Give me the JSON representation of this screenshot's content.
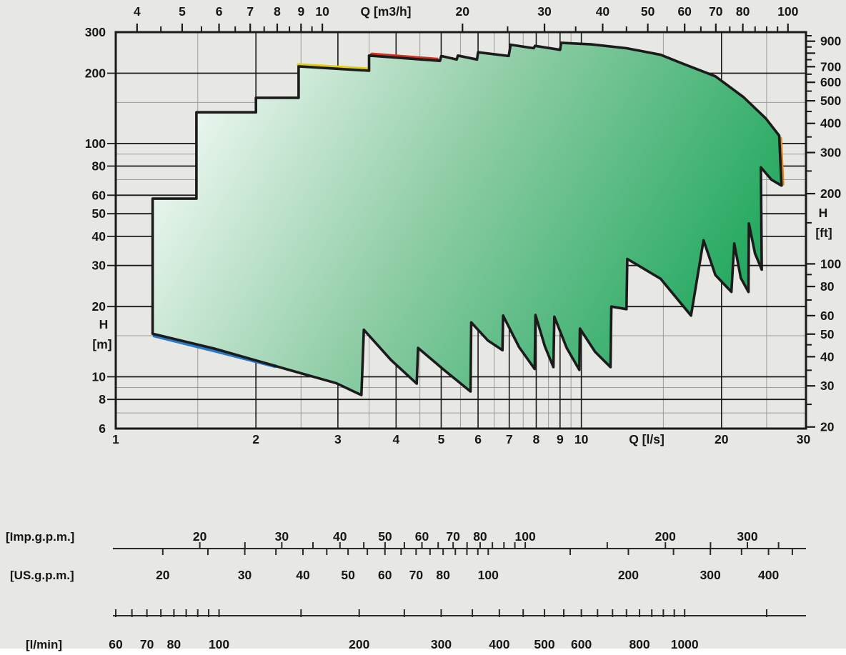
{
  "colors": {
    "background": "#e7e7e4",
    "bottom_strip": "#ffffff",
    "grid_minor": "#9b9b99",
    "grid_major": "#1a1a1a",
    "frame": "#1a1a1a",
    "text": "#161616",
    "envelope_stroke": "#1b1b1b",
    "envelope_grad_start": "#ffffff",
    "envelope_grad_mid": "#8fcda6",
    "envelope_grad_end": "#0aa04f",
    "accent_yellow": "#e3cf06",
    "accent_red": "#d23222",
    "accent_blue": "#2b78c6",
    "accent_orange": "#e0841f",
    "ruler_line": "#2a2a2a"
  },
  "chart_data": {
    "type": "area",
    "title": "",
    "scale": "log-log",
    "x_bottom": {
      "unit_label": "Q  [l/s]",
      "min": 1,
      "max": 30.37,
      "labels": [
        1,
        2,
        3,
        4,
        5,
        6,
        7,
        8,
        9,
        10,
        20,
        30
      ]
    },
    "x_top": {
      "unit_label": "Q  [m3/h]",
      "labels": [
        4,
        5,
        6,
        7,
        8,
        9,
        10,
        20,
        30,
        40,
        50,
        60,
        70,
        80,
        100
      ],
      "minor_ticks": [
        4.5,
        5.5,
        6.5,
        7.5,
        8.5,
        9.5,
        25,
        35,
        45,
        55,
        65,
        75,
        85,
        90,
        95
      ],
      "to_ls": 0.277778
    },
    "y_left": {
      "unit_label_1": "H",
      "unit_label_2": "[m]",
      "min": 6,
      "max": 300,
      "labels": [
        300,
        200,
        100,
        80,
        60,
        50,
        40,
        30,
        20,
        10,
        8,
        6
      ]
    },
    "y_right": {
      "unit_label_1": "H",
      "unit_label_2": "[ft]",
      "labels": [
        900,
        700,
        600,
        500,
        400,
        300,
        200,
        100,
        80,
        60,
        50,
        40,
        30,
        20
      ],
      "major_ticks": [
        900,
        800,
        700,
        600,
        500,
        400,
        300,
        200,
        100,
        80,
        60,
        50,
        40,
        30,
        20
      ],
      "minor_ticks": [
        950,
        850,
        750,
        650,
        550,
        450,
        350,
        250,
        150,
        90,
        70,
        45,
        35,
        25
      ],
      "to_m": 0.3048
    },
    "grid": {
      "v_major": [
        2,
        3,
        4,
        5,
        6,
        7,
        8,
        9,
        10,
        20
      ],
      "v_minor": [
        1.5,
        2.5,
        3.5,
        4.5,
        5.5,
        6.5,
        7.5,
        8.5,
        9.5,
        15,
        25
      ],
      "h_major": [
        200,
        100,
        80,
        60,
        50,
        40,
        30,
        20,
        10,
        8
      ],
      "h_minor": [
        150,
        90,
        70,
        15,
        9,
        7
      ]
    },
    "envelope_q_h": [
      [
        1.2,
        15.3
      ],
      [
        1.2,
        58
      ],
      [
        1.49,
        58
      ],
      [
        1.49,
        136
      ],
      [
        2.0,
        136
      ],
      [
        2.0,
        157
      ],
      [
        2.47,
        157
      ],
      [
        2.47,
        214
      ],
      [
        3.5,
        205
      ],
      [
        3.5,
        238
      ],
      [
        4.97,
        226
      ],
      [
        5.0,
        237
      ],
      [
        5.4,
        229
      ],
      [
        5.43,
        238
      ],
      [
        5.97,
        229
      ],
      [
        6.0,
        246
      ],
      [
        6.98,
        237
      ],
      [
        7.05,
        265
      ],
      [
        7.9,
        256
      ],
      [
        7.95,
        262
      ],
      [
        9.0,
        252
      ],
      [
        9.05,
        270
      ],
      [
        10.5,
        266
      ],
      [
        12.5,
        256
      ],
      [
        14.8,
        240
      ],
      [
        16.3,
        222
      ],
      [
        19.4,
        194
      ],
      [
        22.3,
        158
      ],
      [
        24.9,
        128
      ],
      [
        26.6,
        108
      ],
      [
        26.9,
        66
      ],
      [
        25.6,
        70
      ],
      [
        24.3,
        79
      ],
      [
        24.4,
        28.8
      ],
      [
        23.6,
        33.8
      ],
      [
        22.9,
        45.4
      ],
      [
        22.85,
        23.1
      ],
      [
        22.0,
        26.5
      ],
      [
        21.3,
        37.3
      ],
      [
        21.0,
        23.1
      ],
      [
        19.4,
        27.3
      ],
      [
        18.3,
        38.5
      ],
      [
        17.2,
        18.3
      ],
      [
        14.8,
        26.3
      ],
      [
        12.55,
        32.0
      ],
      [
        12.5,
        19.5
      ],
      [
        11.6,
        20.0
      ],
      [
        11.55,
        11.0
      ],
      [
        10.7,
        12.8
      ],
      [
        9.93,
        16.1
      ],
      [
        9.9,
        10.7
      ],
      [
        9.3,
        13.3
      ],
      [
        8.75,
        18.1
      ],
      [
        8.71,
        11.0
      ],
      [
        8.35,
        13.5
      ],
      [
        7.97,
        18.4
      ],
      [
        7.94,
        10.8
      ],
      [
        7.35,
        13.4
      ],
      [
        6.79,
        18.3
      ],
      [
        6.77,
        13.0
      ],
      [
        6.3,
        14.3
      ],
      [
        5.8,
        17.1
      ],
      [
        5.78,
        8.65
      ],
      [
        5.1,
        10.6
      ],
      [
        4.46,
        13.3
      ],
      [
        4.43,
        9.35
      ],
      [
        3.9,
        11.8
      ],
      [
        3.41,
        15.9
      ],
      [
        3.37,
        8.35
      ],
      [
        2.97,
        9.4
      ],
      [
        2.32,
        10.8
      ],
      [
        1.63,
        13.2
      ]
    ],
    "curve_accents": [
      {
        "color_key": "accent_yellow",
        "points": [
          [
            2.47,
            217
          ],
          [
            3.5,
            208
          ]
        ]
      },
      {
        "color_key": "accent_red",
        "points": [
          [
            3.55,
            241
          ],
          [
            4.9,
            229
          ]
        ]
      },
      {
        "color_key": "accent_blue",
        "points": [
          [
            1.21,
            15.0
          ],
          [
            1.63,
            12.95
          ],
          [
            2.2,
            11.1
          ]
        ]
      },
      {
        "color_key": "accent_orange",
        "points": [
          [
            26.75,
            105
          ],
          [
            27.05,
            67
          ]
        ]
      }
    ],
    "rulers": [
      {
        "id": "imp-gpm",
        "caption": "[Imp.g.p.m.]",
        "to_ls": 0.075769,
        "labels": [
          20,
          30,
          40,
          50,
          60,
          70,
          80,
          100,
          200,
          300
        ],
        "ticks": [
          20,
          25,
          30,
          35,
          40,
          45,
          50,
          55,
          60,
          65,
          70,
          75,
          80,
          85,
          90,
          95,
          100,
          150,
          200,
          250,
          300,
          350
        ]
      },
      {
        "id": "us-gpm",
        "caption": "[US.g.p.m.]",
        "to_ls": 0.06309,
        "labels": [
          20,
          30,
          40,
          50,
          60,
          70,
          80,
          100,
          200,
          300,
          400
        ],
        "ticks": [
          20,
          25,
          30,
          35,
          40,
          45,
          50,
          55,
          60,
          65,
          70,
          75,
          80,
          85,
          90,
          95,
          100,
          150,
          200,
          250,
          300,
          350,
          400,
          450
        ]
      },
      {
        "id": "l-min",
        "caption": "[l/min]",
        "to_ls": 0.0166667,
        "labels": [
          60,
          70,
          80,
          100,
          200,
          300,
          400,
          500,
          600,
          800,
          1000
        ],
        "ticks": [
          60,
          65,
          70,
          75,
          80,
          85,
          90,
          95,
          100,
          150,
          200,
          250,
          300,
          350,
          400,
          450,
          500,
          550,
          600,
          650,
          700,
          750,
          800,
          850,
          900,
          950,
          1000,
          1500
        ]
      }
    ]
  }
}
